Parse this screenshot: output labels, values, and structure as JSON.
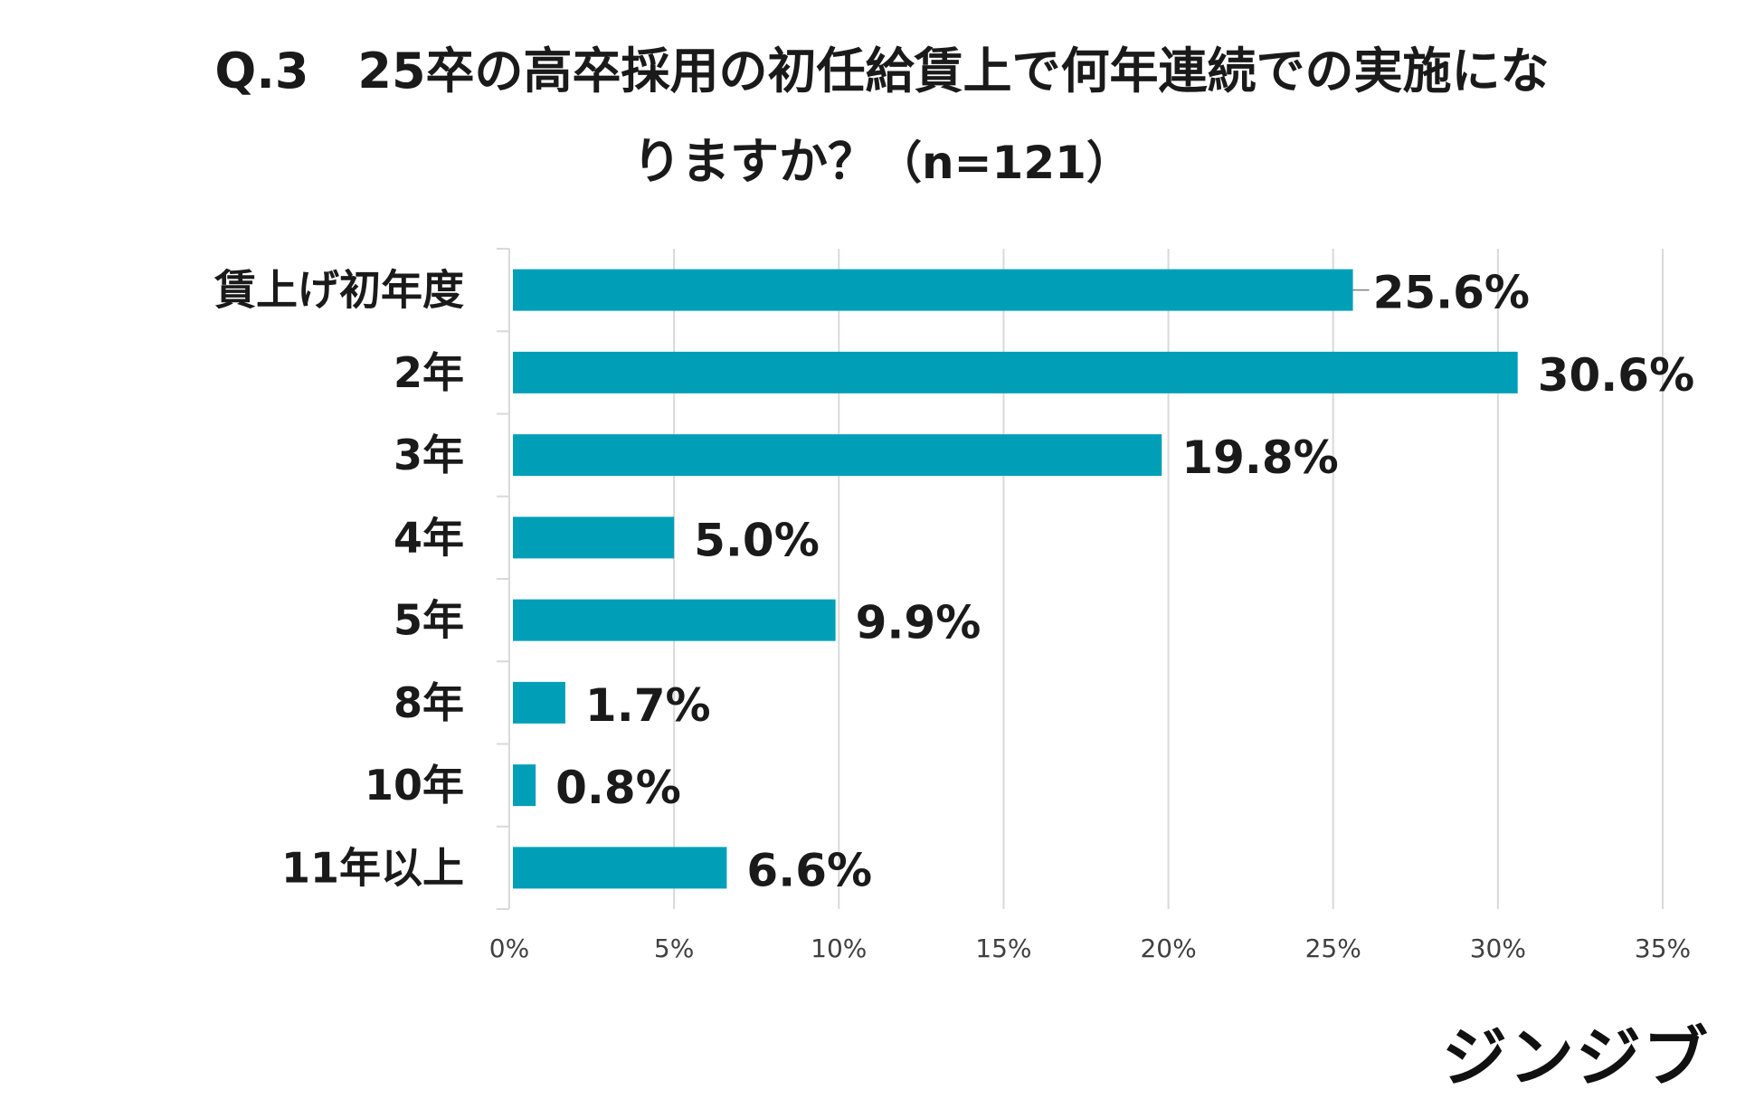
{
  "title_line1": "Q.3　25卒の高卒採用の初任給賃上で何年連続での実施にな",
  "title_line2": "りますか？",
  "title_n": "（n=121）",
  "logo": "ジンジブ",
  "colors": {
    "bar": "#009fb8",
    "grid": "#d9d9d9",
    "text": "#1a1a1a"
  },
  "chart_data": {
    "type": "bar",
    "orientation": "horizontal",
    "title": "Q.3　25卒の高卒採用の初任給賃上で何年連続での実施になりますか？（n=121）",
    "categories": [
      "賃上げ初年度",
      "2年",
      "3年",
      "4年",
      "5年",
      "8年",
      "10年",
      "11年以上"
    ],
    "values": [
      25.6,
      30.6,
      19.8,
      5.0,
      9.9,
      1.7,
      0.8,
      6.6
    ],
    "value_labels": [
      "25.6%",
      "30.6%",
      "19.8%",
      "5.0%",
      "9.9%",
      "1.7%",
      "0.8%",
      "6.6%"
    ],
    "xlim": [
      0,
      35
    ],
    "ticks": [
      0,
      5,
      10,
      15,
      20,
      25,
      30,
      35
    ],
    "tick_labels": [
      "0%",
      "5%",
      "10%",
      "15%",
      "20%",
      "25%",
      "30%",
      "35%"
    ],
    "grid": true,
    "xlabel": "",
    "ylabel": ""
  }
}
